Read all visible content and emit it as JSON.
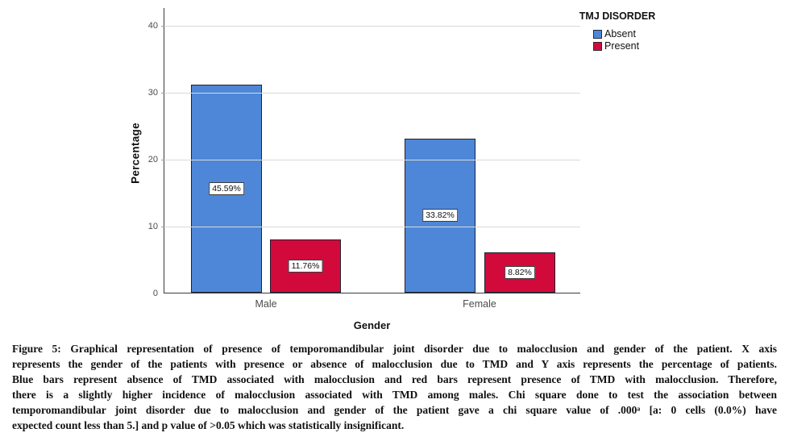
{
  "chart_data": {
    "type": "bar",
    "categories": [
      "Male",
      "Female"
    ],
    "series": [
      {
        "name": "Absent",
        "color": "#4e87d7",
        "values": [
          31,
          23
        ],
        "bar_labels": [
          "45.59%",
          "33.82%"
        ]
      },
      {
        "name": "Present",
        "color": "#d20a3c",
        "values": [
          8,
          6
        ],
        "bar_labels": [
          "11.76%",
          "8.82%"
        ]
      }
    ],
    "xlabel": "Gender",
    "ylabel": "Percentage",
    "yticks": [
      0,
      10,
      20,
      30,
      40
    ],
    "ylim": [
      0,
      42.6
    ],
    "grid": "horizontal",
    "legend": {
      "title": "TMJ DISORDER",
      "entries": [
        "Absent",
        "Present"
      ],
      "position": "top-right"
    }
  },
  "figure": {
    "caption_lines": [
      "Figure 5: Graphical representation of presence of temporomandibular joint disorder due to malocclusion and gender of the patient. X axis",
      "represents the gender of the patients with presence or absence of malocclusion due to TMD and Y axis represents the percentage of patients.",
      "Blue bars represent absence of TMD associated with malocclusion and red bars represent presence of TMD with malocclusion. Therefore,",
      "there is a slightly higher incidence of malocclusion associated with TMD among males. Chi square done to test the association between",
      "temporomandibular joint disorder due to malocclusion and gender of the patient gave a chi square value of .000ᵃ [a: 0 cells (0.0%) have",
      "expected count less than 5.] and p value of >0.05 which was statistically insignificant."
    ]
  }
}
